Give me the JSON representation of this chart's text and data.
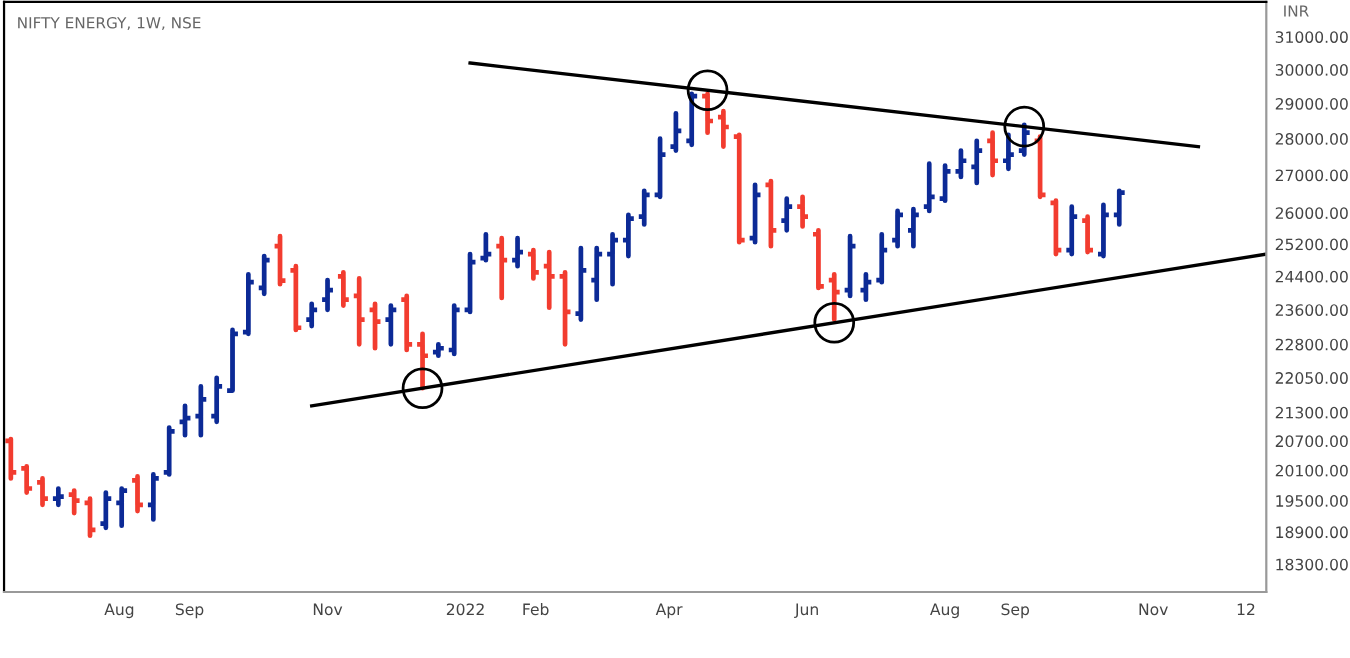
{
  "chart_data": {
    "type": "candlestick",
    "title": "NIFTY ENERGY, 1W, NSE",
    "ylabel": "INR",
    "log": true,
    "x": [
      "2021-06-14",
      "2021-06-21",
      "2021-06-28",
      "2021-07-05",
      "2021-07-12",
      "2021-07-19",
      "2021-07-26",
      "2021-08-02",
      "2021-08-09",
      "2021-08-16",
      "2021-08-23",
      "2021-08-30",
      "2021-09-06",
      "2021-09-13",
      "2021-09-20",
      "2021-09-27",
      "2021-10-04",
      "2021-10-11",
      "2021-10-18",
      "2021-10-25",
      "2021-11-01",
      "2021-11-08",
      "2021-11-15",
      "2021-11-22",
      "2021-11-29",
      "2021-12-06",
      "2021-12-13",
      "2021-12-20",
      "2021-12-27",
      "2022-01-03",
      "2022-01-10",
      "2022-01-17",
      "2022-01-24",
      "2022-01-31",
      "2022-02-07",
      "2022-02-14",
      "2022-02-21",
      "2022-02-28",
      "2022-03-07",
      "2022-03-14",
      "2022-03-21",
      "2022-03-28",
      "2022-04-04",
      "2022-04-11",
      "2022-04-18",
      "2022-04-25",
      "2022-05-02",
      "2022-05-09",
      "2022-05-16",
      "2022-05-23",
      "2022-05-30",
      "2022-06-06",
      "2022-06-13",
      "2022-06-20",
      "2022-06-27",
      "2022-07-04",
      "2022-07-11",
      "2022-07-18",
      "2022-07-25",
      "2022-08-01",
      "2022-08-08",
      "2022-08-15",
      "2022-08-22",
      "2022-08-29",
      "2022-09-05",
      "2022-09-12",
      "2022-09-19",
      "2022-09-26",
      "2022-10-03",
      "2022-10-10",
      "2022-10-17"
    ],
    "ohlc": [
      [
        20700,
        20740,
        19940,
        20060
      ],
      [
        20140,
        20180,
        19660,
        19740
      ],
      [
        19860,
        19940,
        19420,
        19540
      ],
      [
        19540,
        19740,
        19420,
        19580
      ],
      [
        19620,
        19700,
        19260,
        19500
      ],
      [
        19460,
        19540,
        18830,
        18940
      ],
      [
        19060,
        19660,
        18980,
        19540
      ],
      [
        19460,
        19740,
        19020,
        19700
      ],
      [
        19900,
        19980,
        19300,
        19420
      ],
      [
        19420,
        20020,
        19140,
        19940
      ],
      [
        20060,
        20980,
        20020,
        20900
      ],
      [
        21100,
        21440,
        20820,
        21180
      ],
      [
        21220,
        21860,
        20820,
        21580
      ],
      [
        21220,
        22050,
        21100,
        21860
      ],
      [
        21770,
        23130,
        21770,
        23040
      ],
      [
        23080,
        24450,
        23040,
        24260
      ],
      [
        24120,
        24900,
        23980,
        24800
      ],
      [
        25150,
        25400,
        24210,
        24300
      ],
      [
        24550,
        24650,
        23130,
        23180
      ],
      [
        23370,
        23740,
        23220,
        23600
      ],
      [
        23840,
        24310,
        23600,
        24070
      ],
      [
        24400,
        24500,
        23700,
        23840
      ],
      [
        23930,
        24350,
        22800,
        23370
      ],
      [
        23600,
        23740,
        22710,
        23320
      ],
      [
        23370,
        23700,
        22800,
        23600
      ],
      [
        23840,
        23930,
        22670,
        22800
      ],
      [
        22800,
        23040,
        21820,
        22540
      ],
      [
        22620,
        22800,
        22540,
        22710
      ],
      [
        22670,
        23700,
        22580,
        23600
      ],
      [
        23600,
        24950,
        23550,
        24750
      ],
      [
        24850,
        25450,
        24800,
        24950
      ],
      [
        25150,
        25350,
        23880,
        24800
      ],
      [
        24800,
        25350,
        24650,
        25000
      ],
      [
        24950,
        25050,
        24350,
        24500
      ],
      [
        24650,
        25000,
        23650,
        24400
      ],
      [
        24400,
        24500,
        22800,
        23550
      ],
      [
        23510,
        25100,
        23370,
        24550
      ],
      [
        24310,
        25100,
        23840,
        24950
      ],
      [
        24950,
        25450,
        24210,
        25300
      ],
      [
        25300,
        25950,
        24900,
        25850
      ],
      [
        25900,
        26580,
        25700,
        26470
      ],
      [
        26470,
        28000,
        26420,
        27560
      ],
      [
        27780,
        28720,
        27670,
        28220
      ],
      [
        27940,
        29280,
        27830,
        29220
      ],
      [
        29220,
        29280,
        28170,
        28500
      ],
      [
        28610,
        28780,
        27780,
        28330
      ],
      [
        28060,
        28110,
        25250,
        25300
      ],
      [
        25350,
        26740,
        25250,
        26470
      ],
      [
        26740,
        26840,
        25150,
        25550
      ],
      [
        25800,
        26370,
        25550,
        26160
      ],
      [
        26160,
        26420,
        25650,
        25900
      ],
      [
        25450,
        25550,
        24120,
        24160
      ],
      [
        24310,
        24450,
        23370,
        24020
      ],
      [
        24070,
        25400,
        23930,
        25150
      ],
      [
        24070,
        24450,
        23840,
        24260
      ],
      [
        24310,
        25450,
        24260,
        25050
      ],
      [
        25300,
        26050,
        25150,
        25950
      ],
      [
        25550,
        26100,
        25150,
        25950
      ],
      [
        26160,
        27310,
        26050,
        26420
      ],
      [
        26370,
        27260,
        26320,
        27100
      ],
      [
        27100,
        27670,
        26950,
        27390
      ],
      [
        27220,
        27940,
        26790,
        27670
      ],
      [
        27940,
        28170,
        27000,
        27390
      ],
      [
        27390,
        28110,
        27170,
        27560
      ],
      [
        27670,
        28390,
        27560,
        28170
      ],
      [
        27940,
        28060,
        26420,
        26470
      ],
      [
        26260,
        26320,
        24950,
        25050
      ],
      [
        25050,
        26160,
        24950,
        25900
      ],
      [
        25800,
        25900,
        25000,
        25050
      ],
      [
        24950,
        26210,
        24900,
        25950
      ],
      [
        25950,
        26580,
        25700,
        26530
      ]
    ],
    "colors": [
      "#f23c2f",
      "#f23c2f",
      "#f23c2f",
      "#0c2a96",
      "#f23c2f",
      "#f23c2f",
      "#0c2a96",
      "#0c2a96",
      "#f23c2f",
      "#0c2a96",
      "#0c2a96",
      "#0c2a96",
      "#0c2a96",
      "#0c2a96",
      "#0c2a96",
      "#0c2a96",
      "#0c2a96",
      "#f23c2f",
      "#f23c2f",
      "#0c2a96",
      "#0c2a96",
      "#f23c2f",
      "#f23c2f",
      "#f23c2f",
      "#0c2a96",
      "#f23c2f",
      "#f23c2f",
      "#0c2a96",
      "#0c2a96",
      "#0c2a96",
      "#0c2a96",
      "#f23c2f",
      "#0c2a96",
      "#f23c2f",
      "#f23c2f",
      "#f23c2f",
      "#0c2a96",
      "#0c2a96",
      "#0c2a96",
      "#0c2a96",
      "#0c2a96",
      "#0c2a96",
      "#0c2a96",
      "#0c2a96",
      "#f23c2f",
      "#f23c2f",
      "#f23c2f",
      "#0c2a96",
      "#f23c2f",
      "#0c2a96",
      "#f23c2f",
      "#f23c2f",
      "#f23c2f",
      "#0c2a96",
      "#0c2a96",
      "#0c2a96",
      "#0c2a96",
      "#0c2a96",
      "#0c2a96",
      "#0c2a96",
      "#0c2a96",
      "#0c2a96",
      "#f23c2f",
      "#0c2a96",
      "#0c2a96",
      "#f23c2f",
      "#f23c2f",
      "#0c2a96",
      "#f23c2f",
      "#0c2a96",
      "#0c2a96"
    ],
    "series": [
      {
        "type": "line",
        "color": "#000000",
        "x": [
          "2022-01-03",
          "2022-11-21"
        ],
        "values": [
          30200,
          27780
        ]
      },
      {
        "type": "line",
        "color": "#000000",
        "x": [
          "2021-10-25",
          "2022-12-21"
        ],
        "values": [
          21440,
          24950
        ]
      }
    ],
    "xlim": [
      "2021-06-11",
      "2022-12-21"
    ],
    "ylim": [
      17800,
      32100
    ],
    "xticks": [
      {
        "value": "2021-08-01",
        "label": "Aug"
      },
      {
        "value": "2021-09-01",
        "label": "Sep"
      },
      {
        "value": "2021-11-01",
        "label": "Nov"
      },
      {
        "value": "2022-01-01",
        "label": "2022"
      },
      {
        "value": "2022-02-01",
        "label": "Feb"
      },
      {
        "value": "2022-04-01",
        "label": "Apr"
      },
      {
        "value": "2022-06-01",
        "label": "Jun"
      },
      {
        "value": "2022-08-01",
        "label": "Aug"
      },
      {
        "value": "2022-09-01",
        "label": "Sep"
      },
      {
        "value": "2022-11-01",
        "label": "Nov"
      },
      {
        "value": "2022-12-12",
        "label": "12"
      }
    ],
    "yticks": [
      {
        "value": 18300,
        "label": "18300.00"
      },
      {
        "value": 18900,
        "label": "18900.00"
      },
      {
        "value": 19500,
        "label": "19500.00"
      },
      {
        "value": 20100,
        "label": "20100.00"
      },
      {
        "value": 20700,
        "label": "20700.00"
      },
      {
        "value": 21300,
        "label": "21300.00"
      },
      {
        "value": 22050,
        "label": "22050.00"
      },
      {
        "value": 22800,
        "label": "22800.00"
      },
      {
        "value": 23600,
        "label": "23600.00"
      },
      {
        "value": 24400,
        "label": "24400.00"
      },
      {
        "value": 25200,
        "label": "25200.00"
      },
      {
        "value": 26000,
        "label": "26000.00"
      },
      {
        "value": 27000,
        "label": "27000.00"
      },
      {
        "value": 28000,
        "label": "28000.00"
      },
      {
        "value": 29000,
        "label": "29000.00"
      },
      {
        "value": 30000,
        "label": "30000.00"
      },
      {
        "value": 31000,
        "label": "31000.00"
      }
    ]
  }
}
